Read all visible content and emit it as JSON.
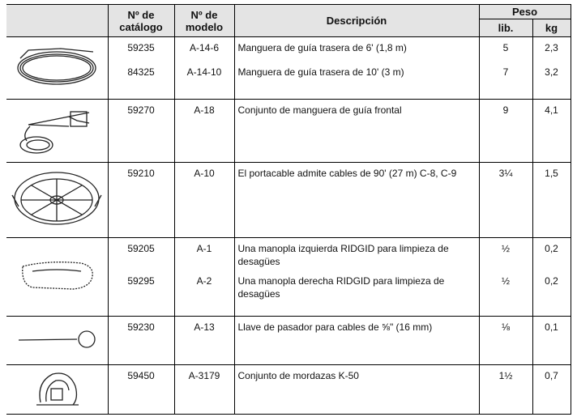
{
  "header": {
    "catalog": "Nº de catálogo",
    "model": "Nº de modelo",
    "description": "Descripción",
    "weight": "Peso",
    "lib": "lib.",
    "kg": "kg"
  },
  "rows": [
    {
      "items": [
        {
          "catalog": "59235",
          "model": "A-14-6",
          "description": "Manguera de guía trasera de 6' (1,8 m)",
          "lib": "5",
          "kg": "2,3"
        },
        {
          "catalog": "84325",
          "model": "A-14-10",
          "description": "Manguera de guía trasera de 10' (3 m)",
          "lib": "7",
          "kg": "3,2"
        }
      ]
    },
    {
      "items": [
        {
          "catalog": "59270",
          "model": "A-18",
          "description": "Conjunto de manguera de guía frontal",
          "lib": "9",
          "kg": "4,1"
        }
      ]
    },
    {
      "items": [
        {
          "catalog": "59210",
          "model": "A-10",
          "description": "El portacable admite cables de 90' (27 m) C-8, C-9",
          "lib": "3¼",
          "kg": "1,5"
        }
      ]
    },
    {
      "items": [
        {
          "catalog": "59205",
          "model": "A-1",
          "description": "Una manopla izquierda RIDGID para limpieza de desagües",
          "lib": "½",
          "kg": "0,2"
        },
        {
          "catalog": "59295",
          "model": "A-2",
          "description": "Una manopla derecha RIDGID para limpieza de desagües",
          "lib": "½",
          "kg": "0,2"
        }
      ]
    },
    {
      "items": [
        {
          "catalog": "59230",
          "model": "A-13",
          "description": "Llave de pasador para cables de ⅝\" (16 mm)",
          "lib": "⅛",
          "kg": "0,1"
        }
      ]
    },
    {
      "items": [
        {
          "catalog": "59450",
          "model": "A-3179",
          "description": "Conjunto de mordazas K-50",
          "lib": "1½",
          "kg": "0,7"
        }
      ]
    }
  ]
}
